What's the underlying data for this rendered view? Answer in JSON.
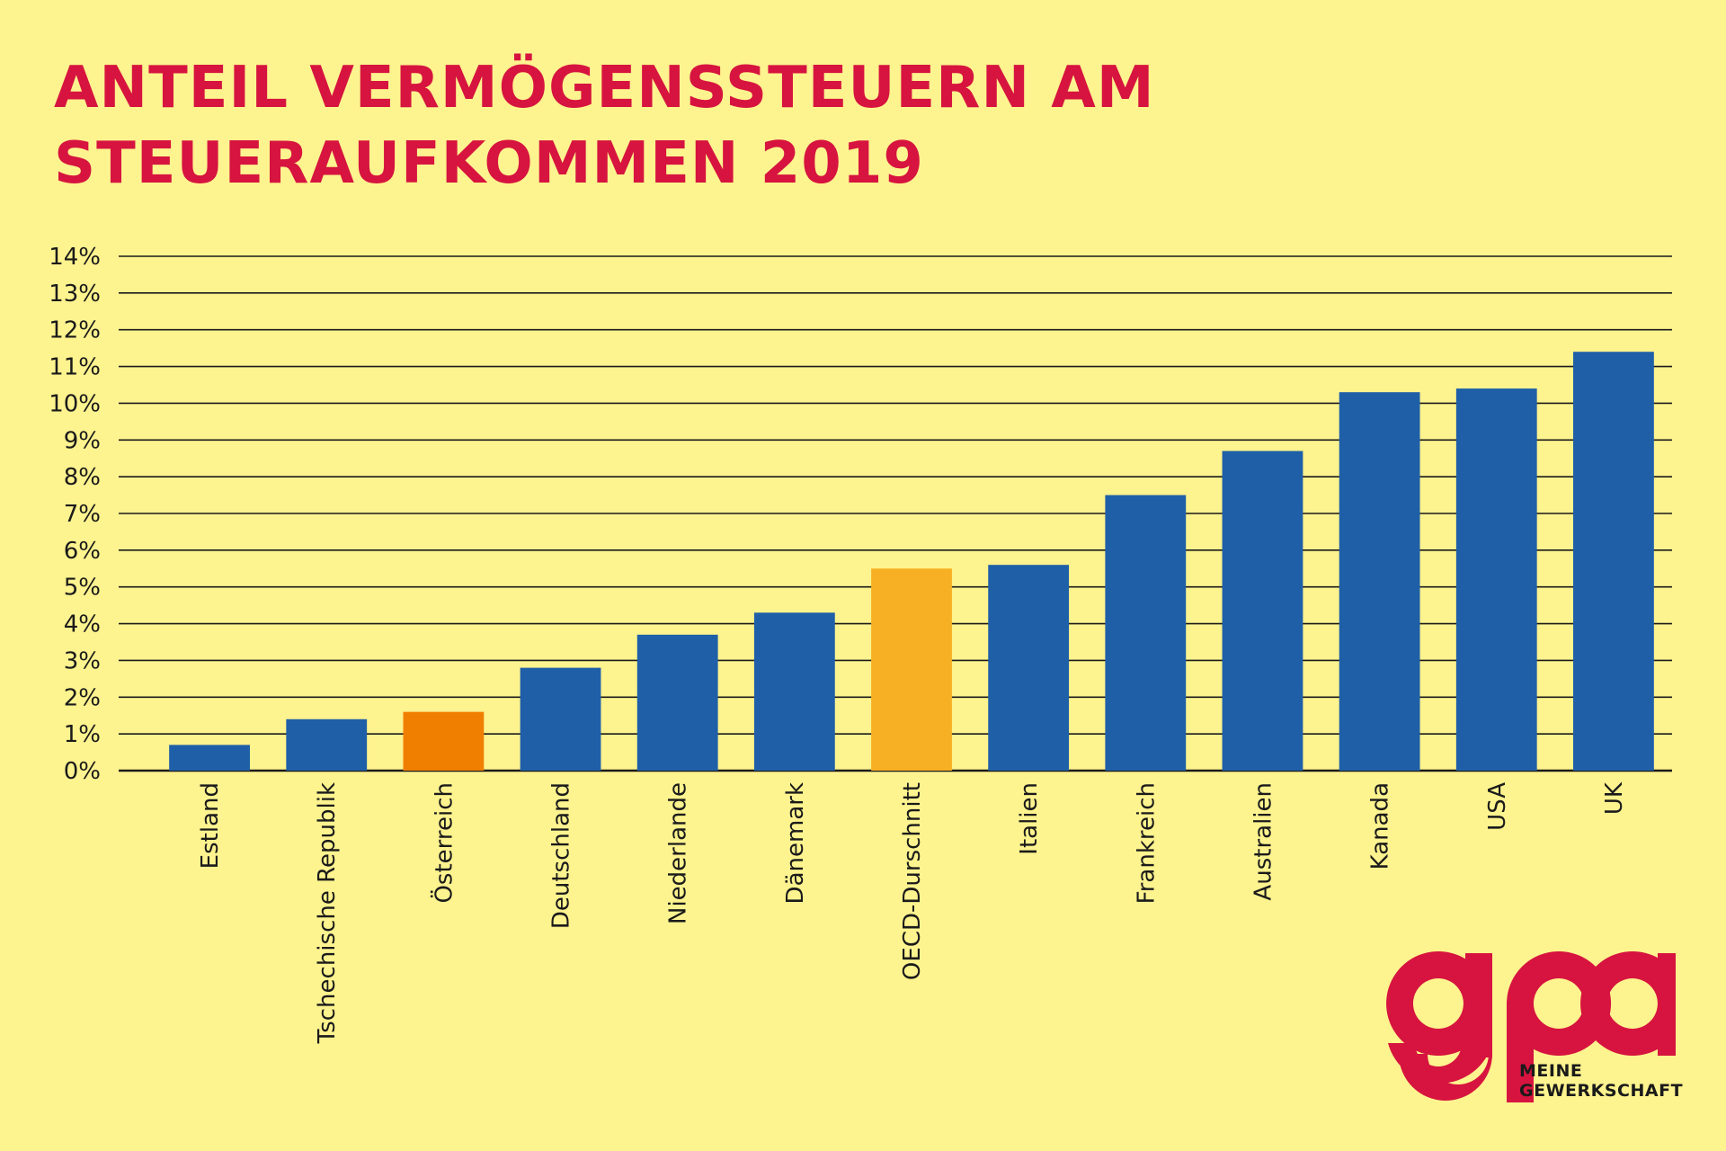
{
  "header": {
    "title_line1": "ANTEIL VERMÖGENSSTEUERN AM",
    "title_line2": "STEUERAUFKOMMEN 2019"
  },
  "chart_data": {
    "type": "bar",
    "title": "ANTEIL VERMÖGENSSTEUERN AM STEUERAUFKOMMEN 2019",
    "xlabel": "",
    "ylabel": "",
    "unit": "%",
    "ylim": [
      0,
      14
    ],
    "yticks": [
      "0%",
      "1%",
      "2%",
      "3%",
      "4%",
      "5%",
      "6%",
      "7%",
      "8%",
      "9%",
      "10%",
      "11%",
      "12%",
      "13%",
      "14%"
    ],
    "grid": true,
    "legend": "none",
    "categories": [
      "Estland",
      "Tschechische Republik",
      "Österreich",
      "Deutschland",
      "Niederlande",
      "Dänemark",
      "OECD-Durschnitt",
      "Italien",
      "Frankreich",
      "Australien",
      "Kanada",
      "USA",
      "UK"
    ],
    "values": [
      0.7,
      1.4,
      1.6,
      2.8,
      3.7,
      4.3,
      5.5,
      5.6,
      7.5,
      8.7,
      10.3,
      10.4,
      11.4
    ],
    "colors": [
      "#1f5fa8",
      "#1f5fa8",
      "#f07f00",
      "#1f5fa8",
      "#1f5fa8",
      "#1f5fa8",
      "#f7b024",
      "#1f5fa8",
      "#1f5fa8",
      "#1f5fa8",
      "#1f5fa8",
      "#1f5fa8",
      "#1f5fa8"
    ]
  },
  "brand": {
    "logo_lettering": "gpa",
    "tagline_line1": "MEINE",
    "tagline_line2": "GEWERKSCHAFT",
    "logo_color": "#d6143f"
  }
}
